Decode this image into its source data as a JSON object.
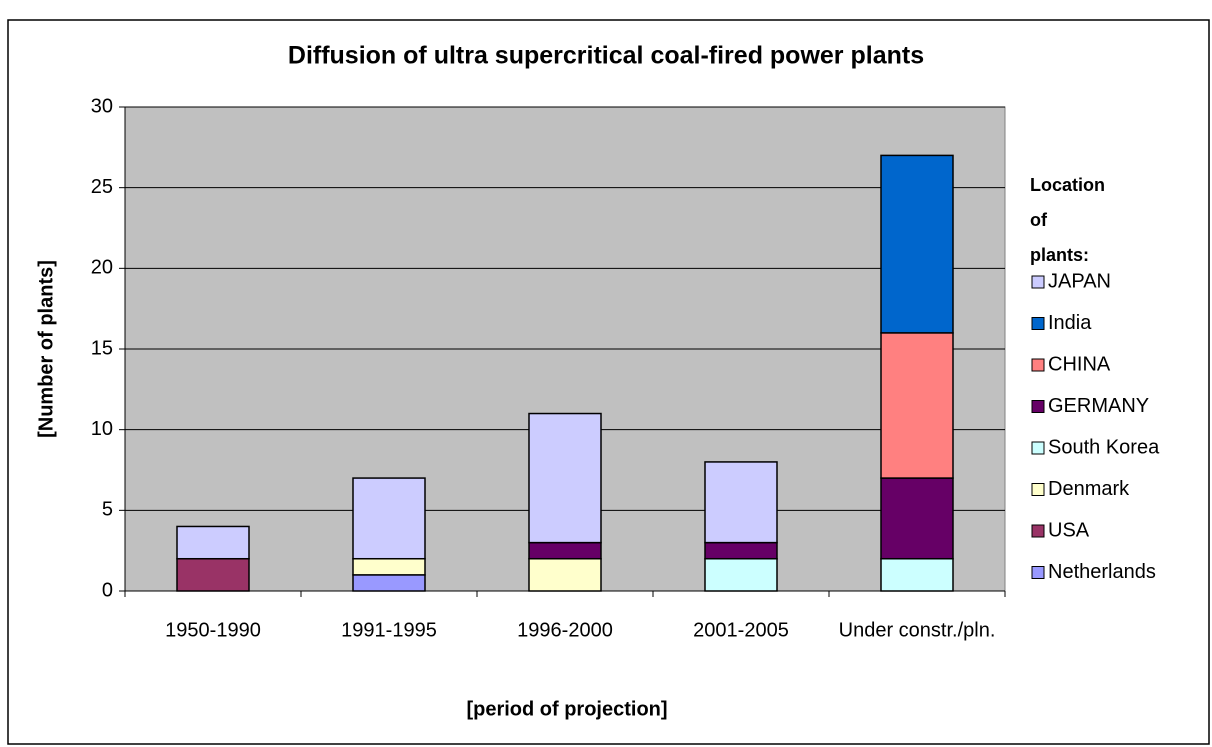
{
  "chart_data": {
    "type": "stacked_bar",
    "title": "Diffusion of ultra supercritical coal-fired power plants",
    "x_label": "[period of projection]",
    "y_label": "[Number of plants]",
    "legend_title": "Location of plants:",
    "legend_position": "right",
    "grid": true,
    "ylim": [
      0,
      30
    ],
    "yticks": [
      0,
      5,
      10,
      15,
      20,
      25,
      30
    ],
    "categories": [
      "1950-1990",
      "1991-1995",
      "1996-2000",
      "2001-2005",
      "Under constr./pln."
    ],
    "series": [
      {
        "name": "Netherlands",
        "color": "#9999ff",
        "values": [
          0,
          1,
          0,
          0,
          0
        ]
      },
      {
        "name": "USA",
        "color": "#993366",
        "values": [
          2,
          0,
          0,
          0,
          0
        ]
      },
      {
        "name": "Denmark",
        "color": "#ffffcc",
        "values": [
          0,
          1,
          2,
          0,
          0
        ]
      },
      {
        "name": "South Korea",
        "color": "#ccffff",
        "values": [
          0,
          0,
          0,
          2,
          2
        ]
      },
      {
        "name": "GERMANY",
        "color": "#660066",
        "values": [
          0,
          0,
          1,
          1,
          5
        ]
      },
      {
        "name": "CHINA",
        "color": "#ff8080",
        "values": [
          0,
          0,
          0,
          0,
          9
        ]
      },
      {
        "name": "India",
        "color": "#0066cc",
        "values": [
          0,
          0,
          0,
          0,
          11
        ]
      },
      {
        "name": "JAPAN",
        "color": "#ccccff",
        "values": [
          2,
          5,
          8,
          5,
          0
        ]
      }
    ]
  }
}
